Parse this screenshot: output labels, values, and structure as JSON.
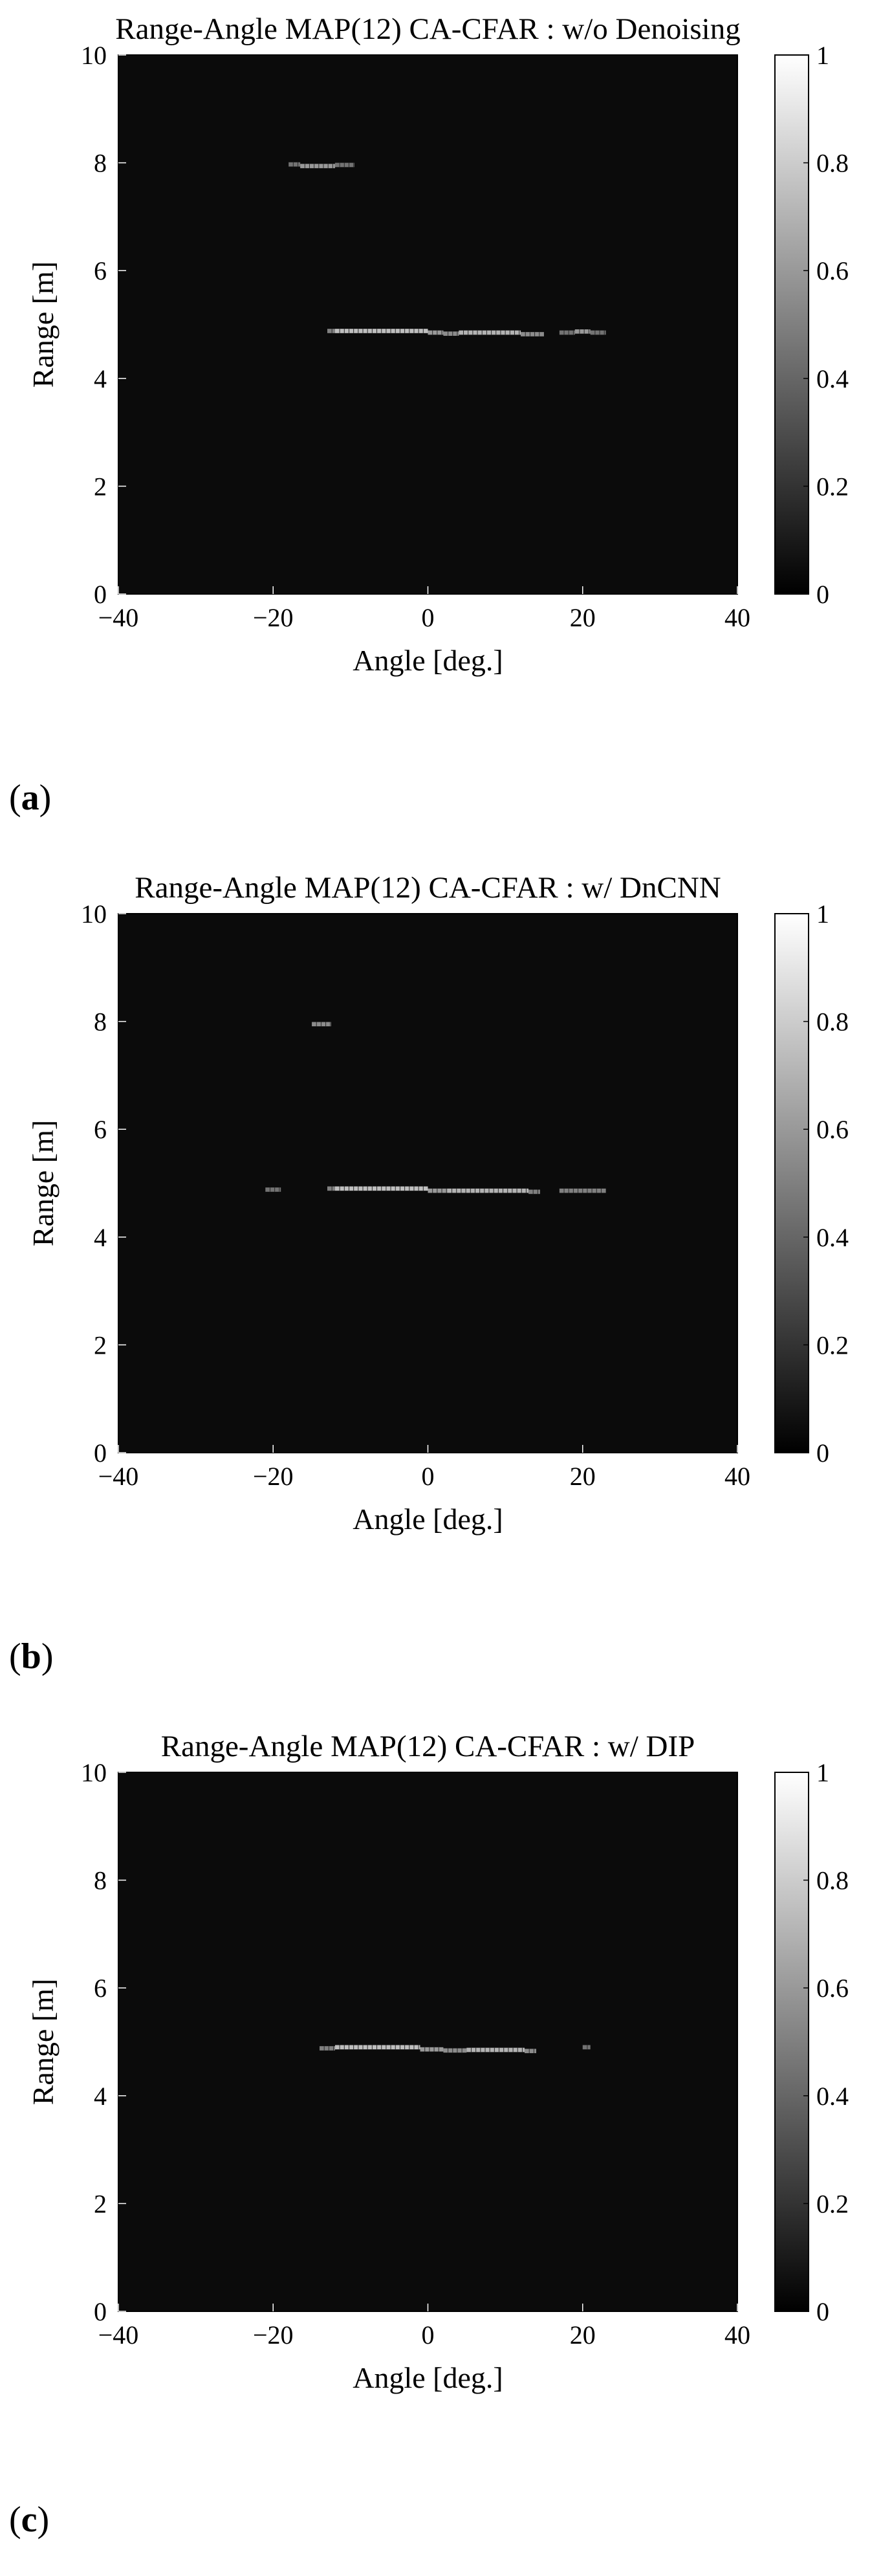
{
  "chart_data": [
    {
      "type": "heatmap",
      "label": "a",
      "title": "Range-Angle MAP(12) CA-CFAR : w/o Denoising",
      "xlabel": "Angle [deg.]",
      "ylabel": "Range [m]",
      "xlim": [
        -40,
        40
      ],
      "ylim": [
        0,
        10
      ],
      "xticks": [
        -40,
        -20,
        0,
        20,
        40
      ],
      "yticks": [
        0,
        2,
        4,
        6,
        8,
        10
      ],
      "colorbar": {
        "range": [
          0,
          1
        ],
        "ticks": [
          0,
          0.2,
          0.4,
          0.6,
          0.8,
          1
        ],
        "colormap": "gray"
      },
      "background": "#0b0b0b",
      "detections": [
        {
          "x": [
            -18.0,
            -16.5
          ],
          "y": 7.97,
          "v": 0.45
        },
        {
          "x": [
            -16.5,
            -12.0
          ],
          "y": 7.94,
          "v": 0.6
        },
        {
          "x": [
            -12.0,
            -9.5
          ],
          "y": 7.96,
          "v": 0.45
        },
        {
          "x": [
            -13.0,
            -12.0
          ],
          "y": 4.88,
          "v": 0.5
        },
        {
          "x": [
            -12.0,
            0.0
          ],
          "y": 4.88,
          "v": 0.75
        },
        {
          "x": [
            0.0,
            2.0
          ],
          "y": 4.85,
          "v": 0.6
        },
        {
          "x": [
            2.0,
            4.0
          ],
          "y": 4.83,
          "v": 0.55
        },
        {
          "x": [
            4.0,
            12.0
          ],
          "y": 4.85,
          "v": 0.7
        },
        {
          "x": [
            12.0,
            15.0
          ],
          "y": 4.82,
          "v": 0.55
        },
        {
          "x": [
            17.0,
            19.0
          ],
          "y": 4.85,
          "v": 0.45
        },
        {
          "x": [
            19.0,
            21.0
          ],
          "y": 4.87,
          "v": 0.6
        },
        {
          "x": [
            21.0,
            23.0
          ],
          "y": 4.85,
          "v": 0.45
        }
      ]
    },
    {
      "type": "heatmap",
      "label": "b",
      "title": "Range-Angle MAP(12) CA-CFAR : w/ DnCNN",
      "xlabel": "Angle [deg.]",
      "ylabel": "Range [m]",
      "xlim": [
        -40,
        40
      ],
      "ylim": [
        0,
        10
      ],
      "xticks": [
        -40,
        -20,
        0,
        20,
        40
      ],
      "yticks": [
        0,
        2,
        4,
        6,
        8,
        10
      ],
      "colorbar": {
        "range": [
          0,
          1
        ],
        "ticks": [
          0,
          0.2,
          0.4,
          0.6,
          0.8,
          1
        ],
        "colormap": "gray"
      },
      "background": "#0b0b0b",
      "detections": [
        {
          "x": [
            -15.0,
            -12.5
          ],
          "y": 7.95,
          "v": 0.55
        },
        {
          "x": [
            -21.0,
            -19.0
          ],
          "y": 4.88,
          "v": 0.45
        },
        {
          "x": [
            -13.0,
            -12.0
          ],
          "y": 4.9,
          "v": 0.5
        },
        {
          "x": [
            -12.0,
            0.0
          ],
          "y": 4.9,
          "v": 0.75
        },
        {
          "x": [
            0.0,
            2.5
          ],
          "y": 4.86,
          "v": 0.6
        },
        {
          "x": [
            2.5,
            13.0
          ],
          "y": 4.86,
          "v": 0.7
        },
        {
          "x": [
            13.0,
            14.5
          ],
          "y": 4.84,
          "v": 0.5
        },
        {
          "x": [
            17.0,
            23.0
          ],
          "y": 4.86,
          "v": 0.5
        }
      ]
    },
    {
      "type": "heatmap",
      "label": "c",
      "title": "Range-Angle MAP(12) CA-CFAR : w/ DIP",
      "xlabel": "Angle [deg.]",
      "ylabel": "Range [m]",
      "xlim": [
        -40,
        40
      ],
      "ylim": [
        0,
        10
      ],
      "xticks": [
        -40,
        -20,
        0,
        20,
        40
      ],
      "yticks": [
        0,
        2,
        4,
        6,
        8,
        10
      ],
      "colorbar": {
        "range": [
          0,
          1
        ],
        "ticks": [
          0,
          0.2,
          0.4,
          0.6,
          0.8,
          1
        ],
        "colormap": "gray"
      },
      "background": "#0b0b0b",
      "detections": [
        {
          "x": [
            -14.0,
            -12.0
          ],
          "y": 4.88,
          "v": 0.5
        },
        {
          "x": [
            -12.0,
            -1.0
          ],
          "y": 4.9,
          "v": 0.75
        },
        {
          "x": [
            -1.0,
            2.0
          ],
          "y": 4.86,
          "v": 0.6
        },
        {
          "x": [
            2.0,
            5.0
          ],
          "y": 4.84,
          "v": 0.55
        },
        {
          "x": [
            5.0,
            12.5
          ],
          "y": 4.85,
          "v": 0.7
        },
        {
          "x": [
            12.5,
            14.0
          ],
          "y": 4.83,
          "v": 0.55
        },
        {
          "x": [
            20.0,
            21.0
          ],
          "y": 4.9,
          "v": 0.45
        }
      ]
    }
  ]
}
